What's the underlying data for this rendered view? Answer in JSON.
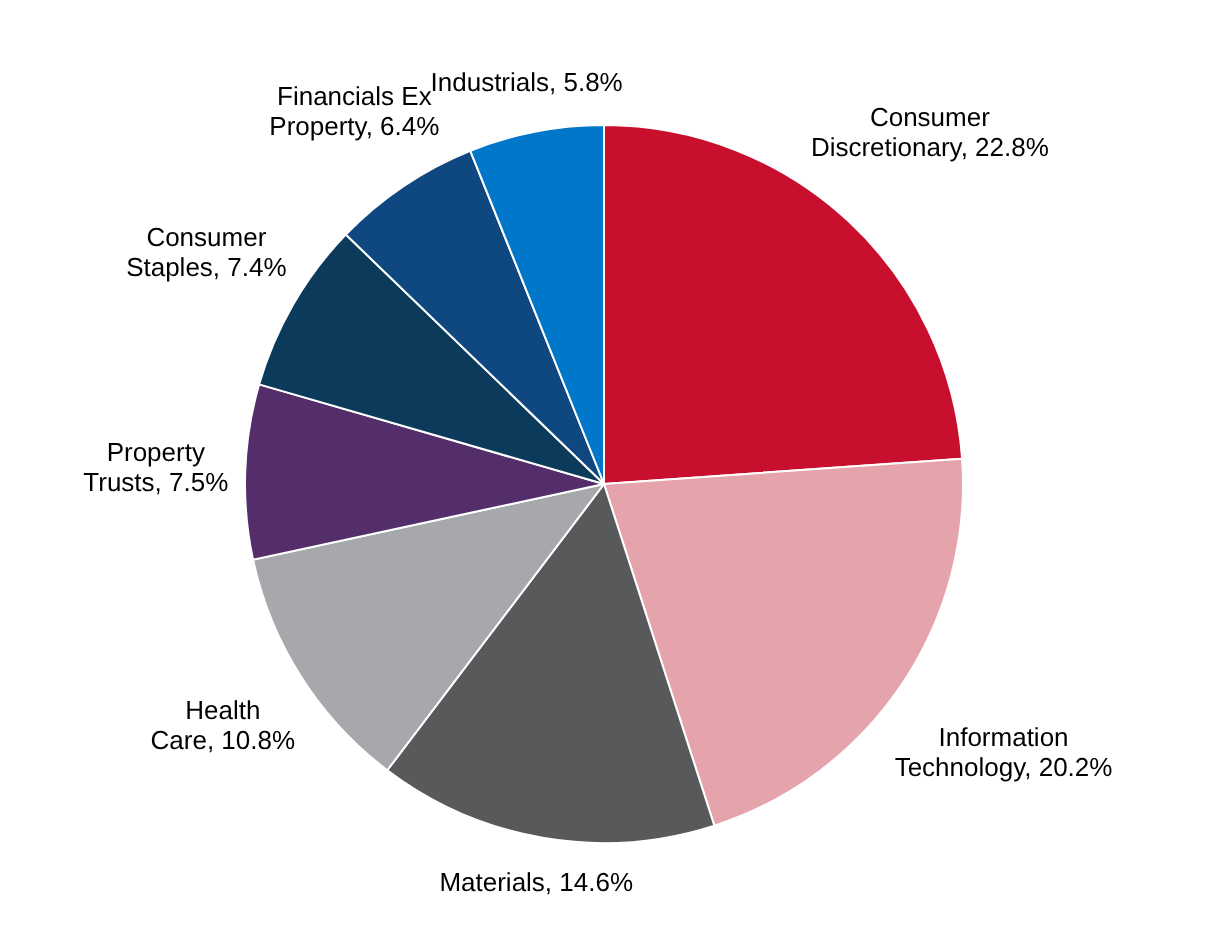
{
  "chart_data": {
    "type": "pie",
    "categories": [
      "Consumer Discretionary",
      "Information Technology",
      "Materials",
      "Health Care",
      "Property Trusts",
      "Consumer Staples",
      "Financials Ex Property",
      "Industrials"
    ],
    "values": [
      22.8,
      20.2,
      14.6,
      10.8,
      7.5,
      7.4,
      6.4,
      5.8
    ],
    "value_labels": [
      "22.8%",
      "20.2%",
      "14.6%",
      "10.8%",
      "7.5%",
      "7.4%",
      "6.4%",
      "5.8%"
    ],
    "colors": [
      "#c8102e",
      "#e5a3ab",
      "#58595b",
      "#a6a8ab",
      "#532e6b",
      "#0b3a5a",
      "#0f4880",
      "#0077c8"
    ],
    "legend": false
  }
}
